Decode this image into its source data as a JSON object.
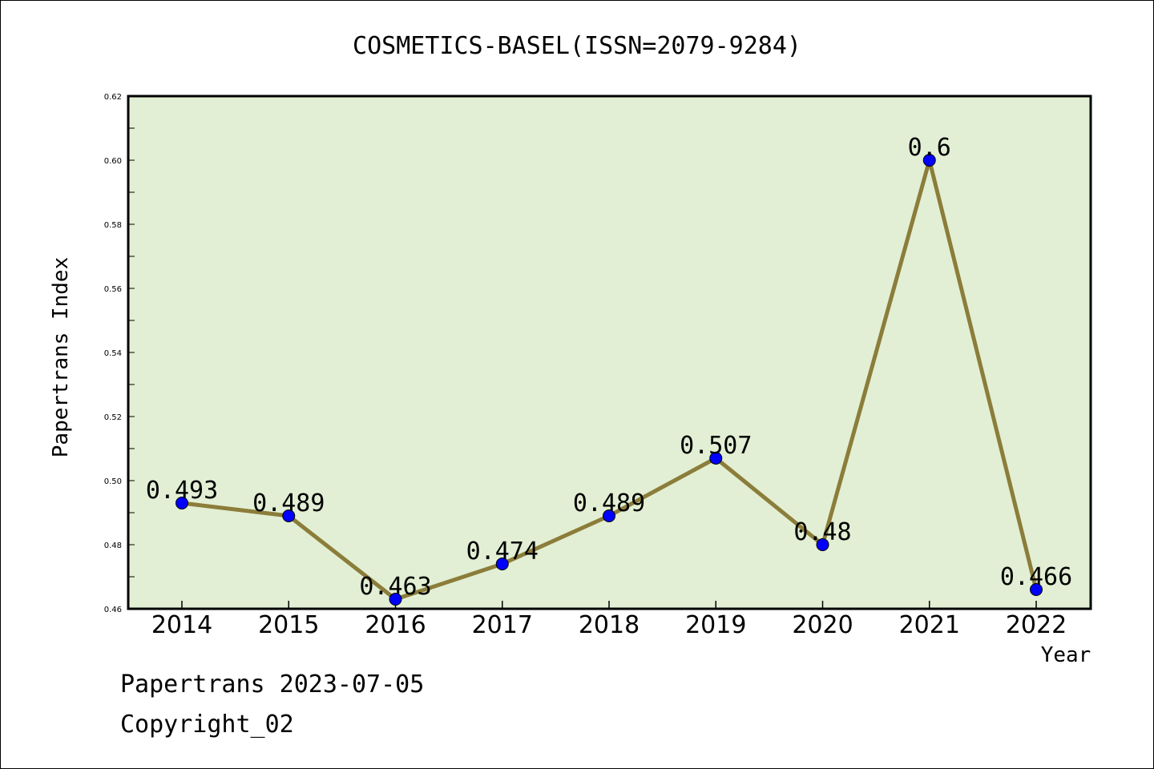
{
  "chart_data": {
    "type": "line",
    "title": "COSMETICS-BASEL(ISSN=2079-9284)",
    "xlabel": "Year",
    "ylabel": "Papertrans Index",
    "categories": [
      "2014",
      "2015",
      "2016",
      "2017",
      "2018",
      "2019",
      "2020",
      "2021",
      "2022"
    ],
    "values": [
      0.493,
      0.489,
      0.463,
      0.474,
      0.489,
      0.507,
      0.48,
      0.6,
      0.466
    ],
    "value_labels": [
      "0.493",
      "0.489",
      "0.463",
      "0.474",
      "0.489",
      "0.507",
      "0.48",
      "0.6",
      "0.466"
    ],
    "ylim": [
      0.46,
      0.62
    ],
    "yticks": [
      0.46,
      0.48,
      0.5,
      0.52,
      0.54,
      0.56,
      0.58,
      0.6,
      0.62
    ],
    "ytick_labels": [
      "0.46",
      "0.48",
      "0.50",
      "0.52",
      "0.54",
      "0.56",
      "0.58",
      "0.60",
      "0.62"
    ],
    "grid": false,
    "legend": "none",
    "colors": {
      "plot_background": "#e2efd4",
      "line": "#8b7d3a",
      "marker": "#0000ff",
      "axis": "#000000"
    }
  },
  "footer": {
    "date_text": "Papertrans 2023-07-05",
    "copyright_text": "Copyright_02"
  }
}
